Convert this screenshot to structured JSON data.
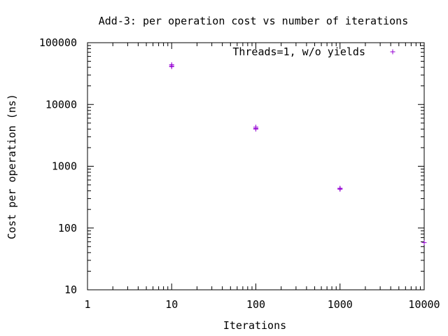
{
  "chart_data": {
    "type": "scatter",
    "title": "Add-3: per operation cost vs number of iterations",
    "xlabel": "Iterations",
    "ylabel": "Cost per operation (ns)",
    "xscale": "log",
    "yscale": "log",
    "xlim": [
      1,
      10000
    ],
    "ylim": [
      10,
      100000
    ],
    "xticks": [
      1,
      10,
      100,
      1000,
      10000
    ],
    "xtick_labels": [
      "1",
      "10",
      "100",
      "1000",
      "10000"
    ],
    "yticks": [
      10,
      100,
      1000,
      10000,
      100000
    ],
    "ytick_labels": [
      "10",
      "100",
      "1000",
      "10000",
      "100000"
    ],
    "grid": false,
    "legend_position": "top-right",
    "series": [
      {
        "name": "Threads=1, w/o yields",
        "color": "#9400d3",
        "marker": "plus",
        "points": [
          {
            "x": 10,
            "y": 42000
          },
          {
            "x": 10,
            "y": 44000
          },
          {
            "x": 10,
            "y": 41000
          },
          {
            "x": 100,
            "y": 4300
          },
          {
            "x": 100,
            "y": 4000
          },
          {
            "x": 100,
            "y": 4100
          },
          {
            "x": 1000,
            "y": 440
          },
          {
            "x": 1000,
            "y": 425
          },
          {
            "x": 1000,
            "y": 435
          },
          {
            "x": 10000,
            "y": 58
          }
        ]
      }
    ]
  }
}
